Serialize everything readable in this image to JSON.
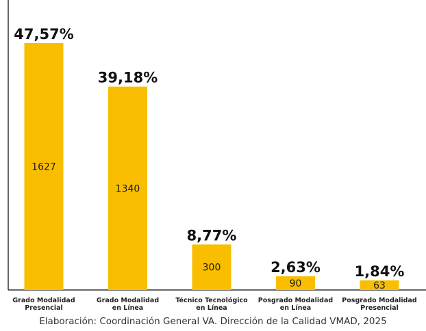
{
  "chart_data": {
    "type": "bar",
    "title": "",
    "xlabel": "",
    "ylabel": "",
    "categories": [
      [
        "Grado Modalidad",
        "Presencial"
      ],
      [
        "Grado Modalidad",
        "en Línea"
      ],
      [
        "Técnico Tecnológico",
        "en Línea"
      ],
      [
        "Posgrado Modalidad",
        "en Línea"
      ],
      [
        "Posgrado Modalidad",
        "Presencial"
      ]
    ],
    "values": [
      1627,
      1340,
      300,
      90,
      63
    ],
    "percent_labels": [
      "47,57%",
      "39,18%",
      "8,77%",
      "2,63%",
      "1,84%"
    ],
    "ylim": [
      0,
      1627
    ],
    "grid": false,
    "legend": "none",
    "bar_color": "#F9BE00",
    "axis_color": "#333333"
  },
  "source_note": "Elaboración: Coordinación General VA. Dirección de la Calidad VMAD, 2025"
}
